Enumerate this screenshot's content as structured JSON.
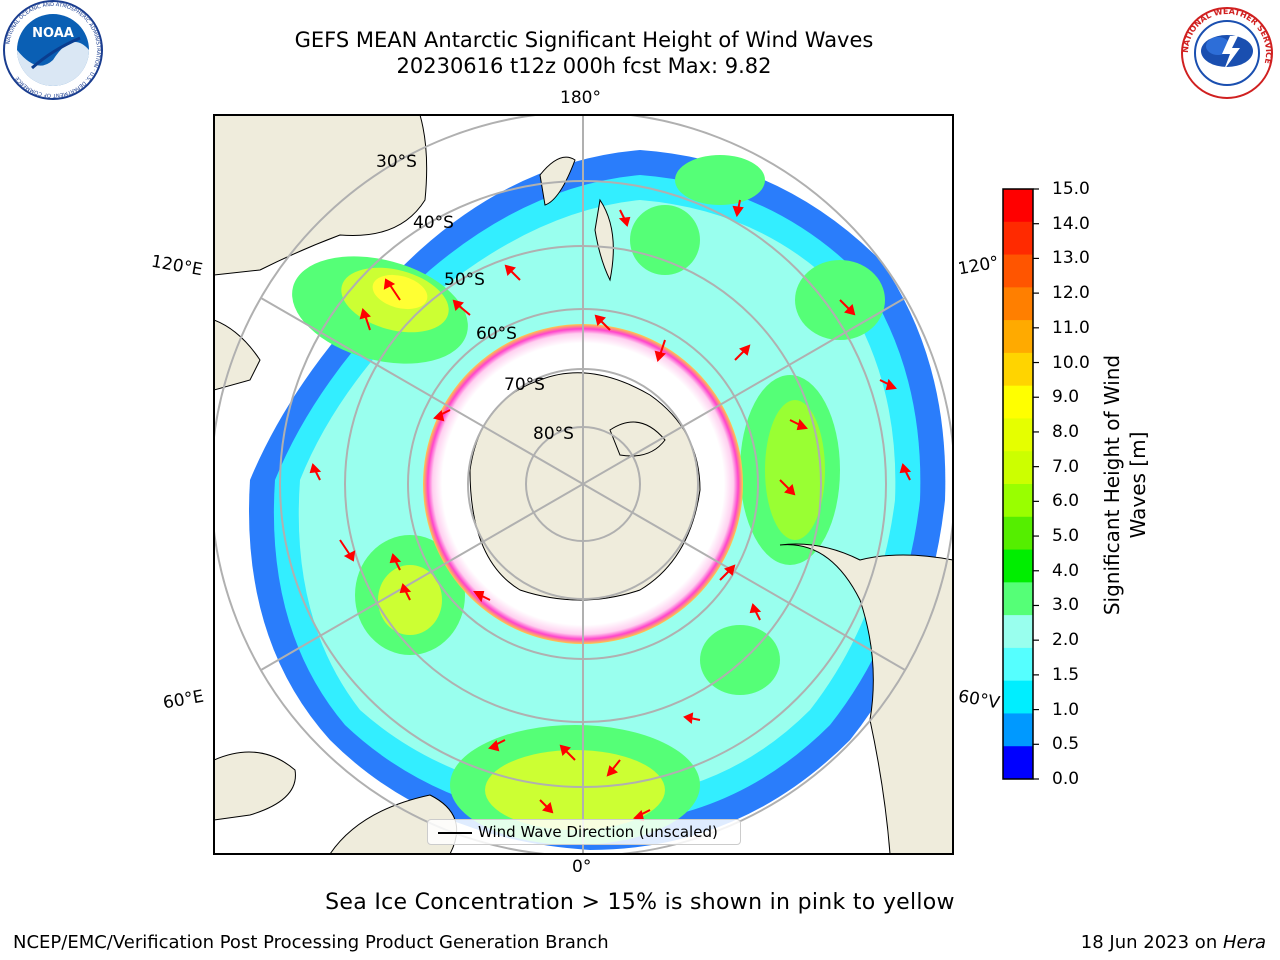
{
  "header": {
    "title_line1": "GEFS MEAN Antarctic Significant Height of Wind Waves",
    "title_line2": "20230616 t12z 000h fcst   Max: 9.82"
  },
  "logos": {
    "left": {
      "icon": "noaa-logo-icon",
      "text": "NOAA",
      "ring_text": "NATIONAL OCEANIC AND ATMOSPHERIC ADMINISTRATION · U.S. DEPARTMENT OF COMMERCE"
    },
    "right": {
      "icon": "nws-logo-icon",
      "ring_text": "NATIONAL WEATHER SERVICE"
    }
  },
  "map": {
    "projection": "south-polar-stereographic",
    "lon_labels": {
      "top": "180°",
      "bottom": "0°",
      "left_upper": "120°E",
      "left_lower": "60°E",
      "right_upper": "120°",
      "right_lower": "60°V"
    },
    "lat_labels": [
      "30°S",
      "40°S",
      "50°S",
      "60°S",
      "70°S",
      "80°S"
    ],
    "legend_label": "Wind Wave Direction (unscaled)",
    "colors": {
      "land": "#efecdc",
      "ocean_missing": "#ffffff",
      "grid": "#b0b0b0",
      "arrow": "#ff0000",
      "ice": "#ff44cc"
    }
  },
  "colorbar": {
    "title": "Significant Height of Wind Waves [m]",
    "ticks": [
      "15.0",
      "14.0",
      "13.0",
      "12.0",
      "11.0",
      "10.0",
      "9.0",
      "8.0",
      "7.0",
      "6.0",
      "5.0",
      "4.0",
      "3.0",
      "2.0",
      "1.5",
      "1.0",
      "0.5",
      "0.0"
    ],
    "colors": [
      "#ff0000",
      "#ff2a00",
      "#ff5500",
      "#ff7f00",
      "#ffaa00",
      "#ffd400",
      "#ffff00",
      "#e5ff00",
      "#ccff00",
      "#99ff00",
      "#55ee00",
      "#00ee00",
      "#55ff77",
      "#99ffee",
      "#55ffff",
      "#00eeff",
      "#0099ff",
      "#0000ff"
    ]
  },
  "notes": {
    "ice_note": "Sea Ice Concentration > 15% is shown in pink to yellow",
    "footer_left": "NCEP/EMC/Verification Post Processing Product Generation Branch",
    "footer_right_prefix": "18 Jun 2023 on ",
    "footer_right_machine": "Hera"
  }
}
